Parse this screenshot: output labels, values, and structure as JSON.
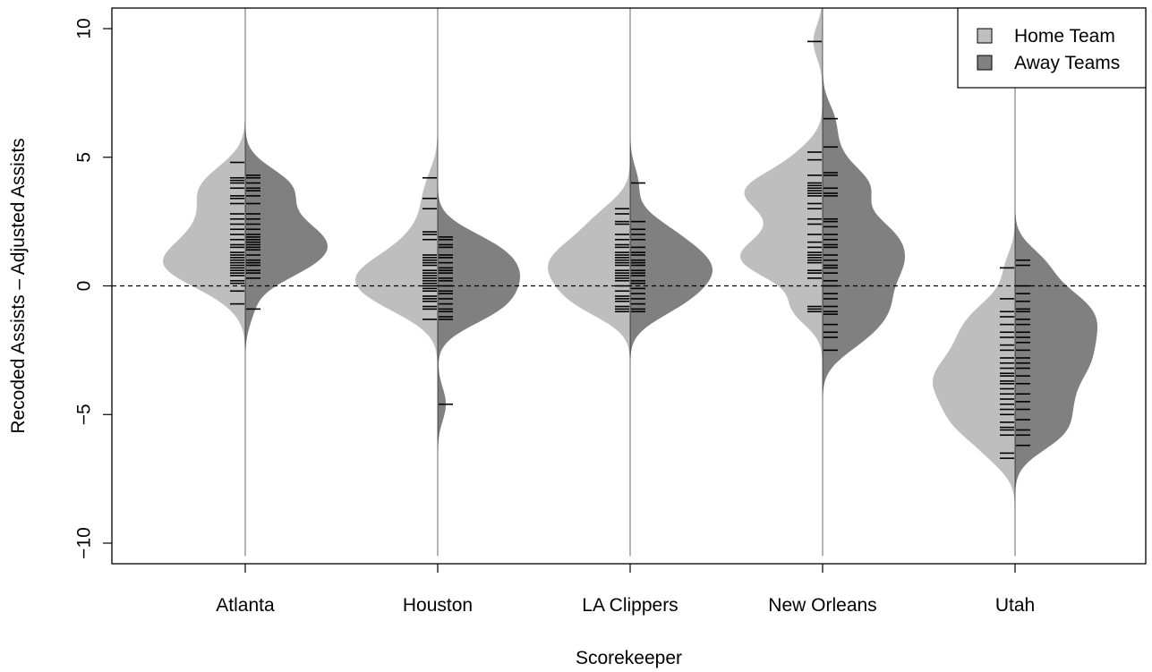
{
  "chart_data": {
    "type": "beanplot",
    "title": "",
    "xlabel": "Scorekeeper",
    "ylabel": "Recoded Assists – Adjusted Assists",
    "ylim": [
      -10.8,
      10.8
    ],
    "yticks": [
      -10,
      -5,
      0,
      5,
      10
    ],
    "reference_line": 0,
    "categories": [
      "Atlanta",
      "Houston",
      "LA Clippers",
      "New Orleans",
      "Utah"
    ],
    "legend": {
      "position": "top-right",
      "entries": [
        {
          "label": "Home Team",
          "color": "#bebebe"
        },
        {
          "label": "Away Teams",
          "color": "#808080"
        }
      ]
    },
    "series": [
      {
        "name": "Home Team",
        "color": "#bebebe",
        "side": "left",
        "values": [
          [
            4.8,
            4.2,
            4.1,
            4.0,
            3.8,
            3.5,
            3.4,
            3.2,
            2.8,
            2.6,
            2.4,
            2.2,
            2.0,
            1.8,
            1.6,
            1.5,
            1.3,
            1.2,
            1.1,
            1.0,
            0.9,
            0.8,
            0.7,
            0.6,
            0.5,
            0.4,
            0.2,
            0.1,
            -0.2,
            -0.7
          ],
          [
            4.2,
            3.4,
            3.0,
            2.1,
            2.0,
            1.8,
            1.2,
            1.1,
            1.0,
            0.9,
            0.8,
            0.6,
            0.5,
            0.4,
            0.3,
            0.2,
            0.1,
            0.0,
            -0.1,
            -0.2,
            -0.4,
            -0.5,
            -0.6,
            -0.8,
            -0.9,
            -1.3
          ],
          [
            3.0,
            2.8,
            2.5,
            2.4,
            2.0,
            1.8,
            1.6,
            1.5,
            1.3,
            1.2,
            1.1,
            1.0,
            0.9,
            0.8,
            0.6,
            0.5,
            0.4,
            0.3,
            0.2,
            0.0,
            -0.2,
            -0.4,
            -0.5,
            -0.6,
            -0.8,
            -0.9,
            -1.0
          ],
          [
            9.5,
            5.2,
            4.9,
            4.3,
            4.0,
            3.9,
            3.8,
            3.7,
            3.6,
            3.5,
            3.2,
            3.0,
            2.6,
            2.4,
            2.0,
            1.7,
            1.5,
            1.3,
            1.2,
            1.1,
            1.0,
            0.9,
            0.6,
            0.5,
            0.3,
            -0.8,
            -0.9,
            -1.0
          ],
          [
            0.7,
            -0.5,
            -1.0,
            -1.2,
            -1.5,
            -1.8,
            -2.0,
            -2.3,
            -2.5,
            -2.8,
            -3.0,
            -3.2,
            -3.4,
            -3.5,
            -3.7,
            -3.8,
            -4.0,
            -4.2,
            -4.4,
            -4.6,
            -4.8,
            -5.0,
            -5.3,
            -5.5,
            -5.6,
            -5.8,
            -6.5,
            -6.7
          ]
        ]
      },
      {
        "name": "Away Teams",
        "color": "#808080",
        "side": "right",
        "values": [
          [
            4.3,
            4.2,
            4.0,
            3.8,
            3.7,
            3.5,
            3.2,
            2.8,
            2.6,
            2.4,
            2.2,
            2.0,
            1.9,
            1.8,
            1.7,
            1.6,
            1.5,
            1.4,
            1.2,
            1.0,
            0.9,
            0.8,
            0.6,
            0.5,
            0.3,
            -0.9
          ],
          [
            1.9,
            1.8,
            1.6,
            1.5,
            1.2,
            1.1,
            0.9,
            0.7,
            0.6,
            0.5,
            0.3,
            0.2,
            0.0,
            -0.2,
            -0.3,
            -0.5,
            -0.7,
            -0.9,
            -1.0,
            -1.2,
            -1.3,
            -4.6
          ],
          [
            4.0,
            2.5,
            2.2,
            2.0,
            1.8,
            1.5,
            1.3,
            1.2,
            1.0,
            0.9,
            0.8,
            0.6,
            0.5,
            0.4,
            0.2,
            0.1,
            -0.1,
            -0.3,
            -0.5,
            -0.7,
            -0.9,
            -1.0
          ],
          [
            6.5,
            5.4,
            4.4,
            4.3,
            3.8,
            3.6,
            3.5,
            2.6,
            2.5,
            2.3,
            2.0,
            1.8,
            1.6,
            1.5,
            1.2,
            1.0,
            0.8,
            0.7,
            0.5,
            0.2,
            0.0,
            -0.3,
            -0.5,
            -0.8,
            -1.0,
            -1.1,
            -1.5,
            -1.8,
            -2.0,
            -2.5
          ],
          [
            1.0,
            0.8,
            0.0,
            -0.3,
            -0.6,
            -0.9,
            -1.0,
            -1.3,
            -1.5,
            -1.8,
            -2.0,
            -2.2,
            -2.5,
            -2.8,
            -3.0,
            -3.2,
            -3.5,
            -3.8,
            -4.2,
            -4.5,
            -4.8,
            -5.2,
            -5.6,
            -5.8,
            -6.2
          ]
        ]
      }
    ]
  }
}
